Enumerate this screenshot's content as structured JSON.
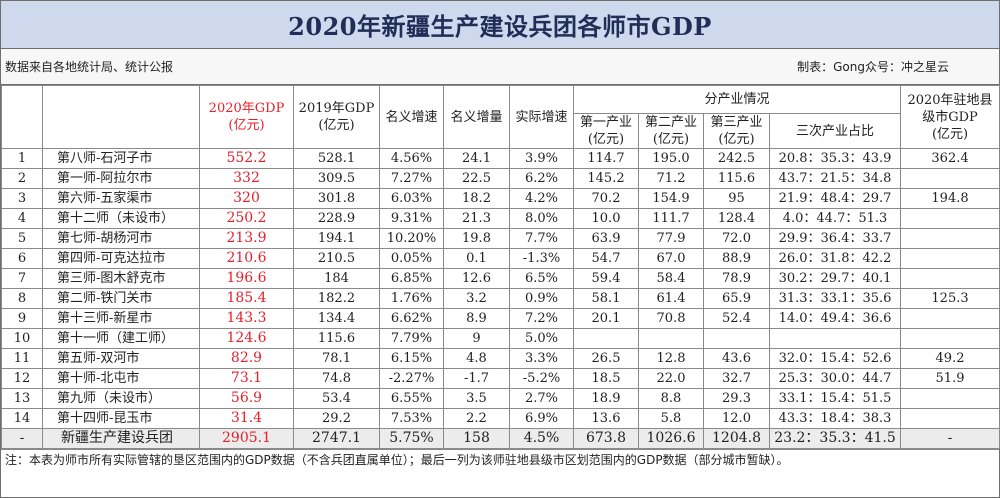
{
  "title": "2020年新疆生产建设兵团各师市GDP",
  "source_note": "数据来自各地统计局、统计公报",
  "maker_note": "制表：Gong众号：冲之星云",
  "headers": {
    "gdp2020_line1": "2020年GDP",
    "gdp2020_line2": "(亿元)",
    "gdp2019_line1": "2019年GDP",
    "gdp2019_line2": "(亿元)",
    "nominal_growth": "名义增速",
    "nominal_increase": "名义增量",
    "real_growth": "实际增速",
    "industry_group": "分产业情况",
    "primary": "第一产业",
    "secondary": "第二产业",
    "tertiary": "第三产业",
    "unit": "(亿元)",
    "ratio": "三次产业占比",
    "county_line1": "2020年驻地县",
    "county_line2": "级市GDP",
    "county_line3": "(亿元)"
  },
  "rows": [
    {
      "no": "1",
      "name": "第八师-石河子市",
      "gdp2020": "552.2",
      "gdp2019": "528.1",
      "nominal_growth": "4.56%",
      "nominal_increase": "24.1",
      "real_growth": "3.9%",
      "primary": "114.7",
      "secondary": "195.0",
      "tertiary": "242.5",
      "ratio": "20.8：35.3：43.9",
      "county_gdp": "362.4"
    },
    {
      "no": "2",
      "name": "第一师-阿拉尔市",
      "gdp2020": "332",
      "gdp2019": "309.5",
      "nominal_growth": "7.27%",
      "nominal_increase": "22.5",
      "real_growth": "6.2%",
      "primary": "145.2",
      "secondary": "71.2",
      "tertiary": "115.6",
      "ratio": "43.7：21.5：34.8",
      "county_gdp": ""
    },
    {
      "no": "3",
      "name": "第六师-五家渠市",
      "gdp2020": "320",
      "gdp2019": "301.8",
      "nominal_growth": "6.03%",
      "nominal_increase": "18.2",
      "real_growth": "4.2%",
      "primary": "70.2",
      "secondary": "154.9",
      "tertiary": "95",
      "ratio": "21.9：48.4：29.7",
      "county_gdp": "194.8"
    },
    {
      "no": "4",
      "name": "第十二师（未设市）",
      "gdp2020": "250.2",
      "gdp2019": "228.9",
      "nominal_growth": "9.31%",
      "nominal_increase": "21.3",
      "real_growth": "8.0%",
      "primary": "10.0",
      "secondary": "111.7",
      "tertiary": "128.4",
      "ratio": "4.0：44.7：51.3",
      "county_gdp": ""
    },
    {
      "no": "5",
      "name": "第七师-胡杨河市",
      "gdp2020": "213.9",
      "gdp2019": "194.1",
      "nominal_growth": "10.20%",
      "nominal_increase": "19.8",
      "real_growth": "7.7%",
      "primary": "63.9",
      "secondary": "77.9",
      "tertiary": "72.0",
      "ratio": "29.9：36.4：33.7",
      "county_gdp": ""
    },
    {
      "no": "6",
      "name": "第四师-可克达拉市",
      "gdp2020": "210.6",
      "gdp2019": "210.5",
      "nominal_growth": "0.05%",
      "nominal_increase": "0.1",
      "real_growth": "-1.3%",
      "primary": "54.7",
      "secondary": "67.0",
      "tertiary": "88.9",
      "ratio": "26.0：31.8：42.2",
      "county_gdp": ""
    },
    {
      "no": "7",
      "name": "第三师-图木舒克市",
      "gdp2020": "196.6",
      "gdp2019": "184",
      "nominal_growth": "6.85%",
      "nominal_increase": "12.6",
      "real_growth": "6.5%",
      "primary": "59.4",
      "secondary": "58.4",
      "tertiary": "78.9",
      "ratio": "30.2：29.7：40.1",
      "county_gdp": ""
    },
    {
      "no": "8",
      "name": "第二师-铁门关市",
      "gdp2020": "185.4",
      "gdp2019": "182.2",
      "nominal_growth": "1.76%",
      "nominal_increase": "3.2",
      "real_growth": "0.9%",
      "primary": "58.1",
      "secondary": "61.4",
      "tertiary": "65.9",
      "ratio": "31.3：33.1：35.6",
      "county_gdp": "125.3"
    },
    {
      "no": "9",
      "name": "第十三师-新星市",
      "gdp2020": "143.3",
      "gdp2019": "134.4",
      "nominal_growth": "6.62%",
      "nominal_increase": "8.9",
      "real_growth": "7.2%",
      "primary": "20.1",
      "secondary": "70.8",
      "tertiary": "52.4",
      "ratio": "14.0：49.4：36.6",
      "county_gdp": ""
    },
    {
      "no": "10",
      "name": "第十一师（建工师）",
      "gdp2020": "124.6",
      "gdp2019": "115.6",
      "nominal_growth": "7.79%",
      "nominal_increase": "9",
      "real_growth": "5.0%",
      "primary": "",
      "secondary": "",
      "tertiary": "",
      "ratio": "",
      "county_gdp": ""
    },
    {
      "no": "11",
      "name": "第五师-双河市",
      "gdp2020": "82.9",
      "gdp2019": "78.1",
      "nominal_growth": "6.15%",
      "nominal_increase": "4.8",
      "real_growth": "3.3%",
      "primary": "26.5",
      "secondary": "12.8",
      "tertiary": "43.6",
      "ratio": "32.0：15.4：52.6",
      "county_gdp": "49.2"
    },
    {
      "no": "12",
      "name": "第十师-北屯市",
      "gdp2020": "73.1",
      "gdp2019": "74.8",
      "nominal_growth": "-2.27%",
      "nominal_increase": "-1.7",
      "real_growth": "-5.2%",
      "primary": "18.5",
      "secondary": "22.0",
      "tertiary": "32.7",
      "ratio": "25.3：30.0：44.7",
      "county_gdp": "51.9"
    },
    {
      "no": "13",
      "name": "第九师（未设市）",
      "gdp2020": "56.9",
      "gdp2019": "53.4",
      "nominal_growth": "6.55%",
      "nominal_increase": "3.5",
      "real_growth": "2.7%",
      "primary": "18.9",
      "secondary": "8.8",
      "tertiary": "29.3",
      "ratio": "33.1：15.4：51.5",
      "county_gdp": ""
    },
    {
      "no": "14",
      "name": "第十四师-昆玉市",
      "gdp2020": "31.4",
      "gdp2019": "29.2",
      "nominal_growth": "7.53%",
      "nominal_increase": "2.2",
      "real_growth": "6.9%",
      "primary": "13.6",
      "secondary": "5.8",
      "tertiary": "12.0",
      "ratio": "43.3：18.4：38.3",
      "county_gdp": ""
    }
  ],
  "total": {
    "no": "-",
    "name": "新疆生产建设兵团",
    "gdp2020": "2905.1",
    "gdp2019": "2747.1",
    "nominal_growth": "5.75%",
    "nominal_increase": "158",
    "real_growth": "4.5%",
    "primary": "673.8",
    "secondary": "1026.6",
    "tertiary": "1204.8",
    "ratio": "23.2：35.3：41.5",
    "county_gdp": "-"
  },
  "footnote": "注：本表为师市所有实际管辖的垦区范围内的GDP数据（不含兵团直属单位）；最后一列为该师驻地县级市区划范围内的GDP数据（部分城市暂缺）。",
  "colors": {
    "title_bg": "#cfd9ed",
    "title_text": "#1f2d57",
    "highlight_red": "#e8202a"
  }
}
